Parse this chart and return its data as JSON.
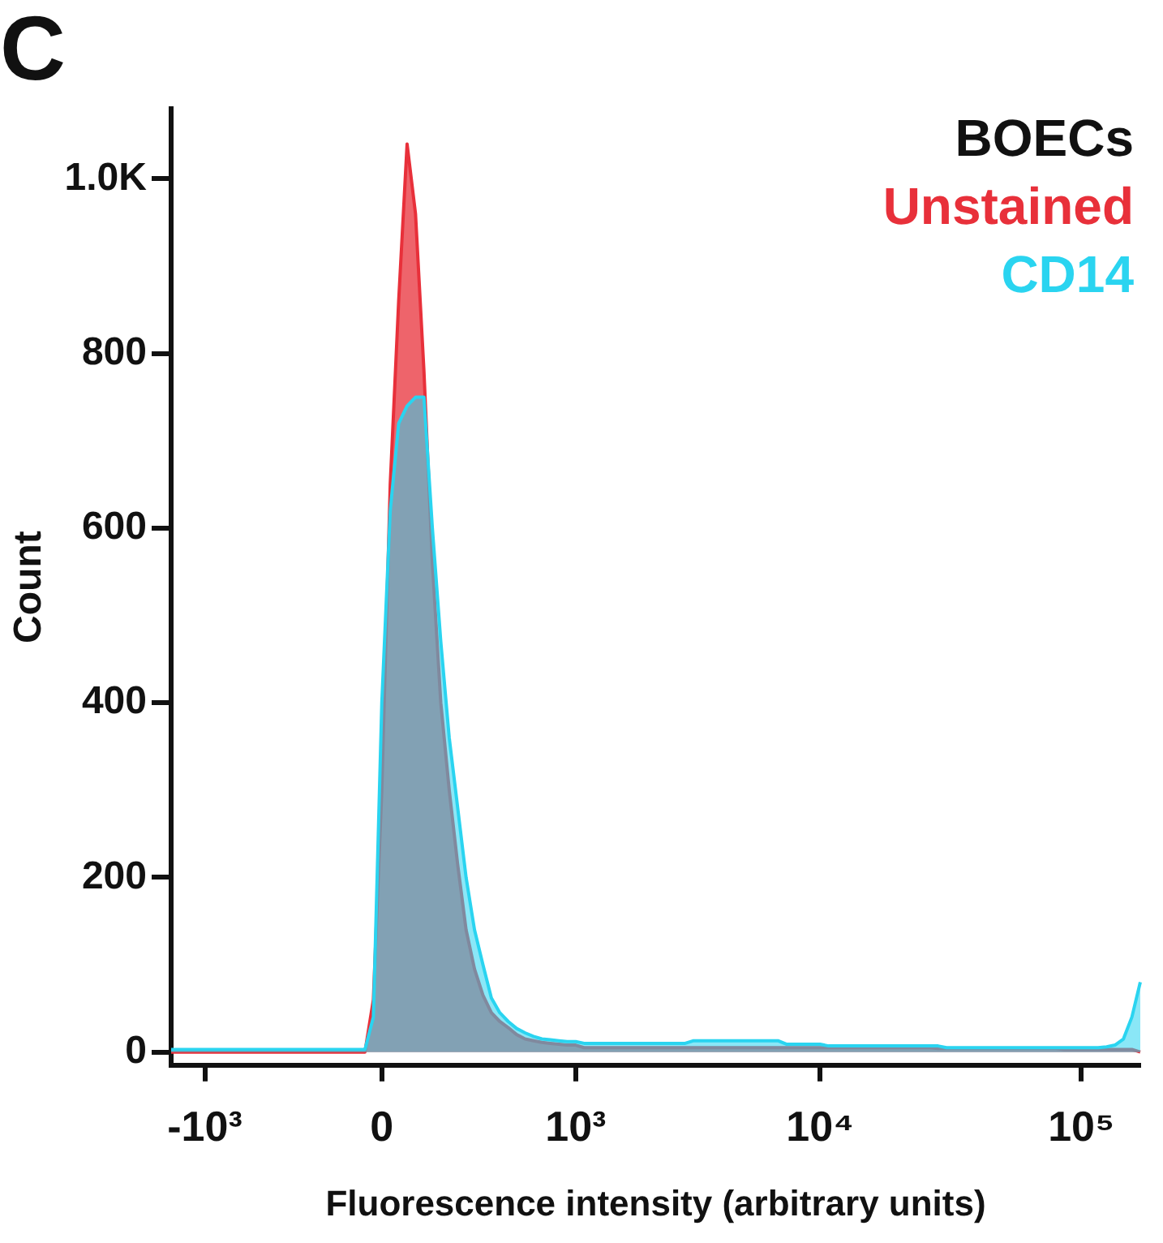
{
  "chart_data": {
    "type": "area",
    "title": "C",
    "xlabel": "Fluorescence intensity (arbitrary units)",
    "ylabel": "Count",
    "legend_title": "BOECs",
    "legend": "top right",
    "grid": false,
    "categories": [
      null,
      null,
      null,
      null,
      "-10³",
      null,
      null,
      null,
      null,
      null,
      null,
      null,
      null,
      null,
      null,
      null,
      null,
      null,
      null,
      null,
      null,
      null,
      null,
      null,
      null,
      "0",
      null,
      null,
      null,
      null,
      null,
      null,
      null,
      null,
      null,
      null,
      null,
      null,
      null,
      null,
      null,
      null,
      null,
      null,
      null,
      null,
      null,
      null,
      "10³",
      null,
      null,
      null,
      null,
      null,
      null,
      null,
      null,
      null,
      null,
      null,
      null,
      null,
      null,
      null,
      null,
      null,
      null,
      null,
      null,
      null,
      null,
      null,
      null,
      null,
      null,
      null,
      null,
      "10⁴",
      null,
      null,
      null,
      null,
      null,
      null,
      null,
      null,
      null,
      null,
      null,
      null,
      null,
      null,
      null,
      null,
      null,
      null,
      null,
      null,
      null,
      null,
      null,
      null,
      null,
      null,
      null,
      null,
      null,
      null,
      "10⁵",
      null,
      null,
      null,
      null,
      null,
      null,
      null
    ],
    "ylim": [
      -15,
      1080
    ],
    "yticks": [
      0,
      200,
      400,
      600,
      800,
      {
        "value": 1000,
        "label": "1.0K"
      }
    ],
    "series": [
      {
        "name": "Unstained",
        "color": "#e8303a",
        "values": [
          0,
          0,
          0,
          0,
          0,
          0,
          0,
          0,
          0,
          0,
          0,
          0,
          0,
          0,
          0,
          0,
          0,
          0,
          0,
          0,
          0,
          0,
          0,
          0,
          60,
          300,
          650,
          860,
          1040,
          960,
          780,
          560,
          400,
          300,
          215,
          140,
          95,
          65,
          45,
          35,
          28,
          20,
          15,
          13,
          11,
          10,
          9,
          8,
          8,
          5,
          5,
          5,
          5,
          5,
          5,
          5,
          5,
          5,
          5,
          5,
          5,
          5,
          5,
          5,
          5,
          5,
          5,
          5,
          5,
          5,
          5,
          5,
          5,
          5,
          5,
          5,
          5,
          5,
          5,
          5,
          5,
          5,
          5,
          5,
          5,
          5,
          5,
          5,
          5,
          5,
          5,
          4,
          4,
          4,
          4,
          4,
          4,
          4,
          4,
          4,
          4,
          4,
          4,
          4,
          4,
          4,
          3,
          3,
          3,
          3,
          3,
          3,
          3,
          3,
          3,
          0
        ]
      },
      {
        "name": "CD14",
        "color": "#2ad4f0",
        "values": [
          3,
          3,
          3,
          3,
          3,
          3,
          3,
          3,
          3,
          3,
          3,
          3,
          3,
          3,
          3,
          3,
          3,
          3,
          3,
          3,
          3,
          3,
          3,
          3,
          40,
          400,
          620,
          720,
          740,
          750,
          750,
          600,
          470,
          360,
          280,
          200,
          140,
          100,
          62,
          45,
          35,
          27,
          22,
          18,
          15,
          14,
          13,
          12,
          12,
          10,
          10,
          10,
          10,
          10,
          10,
          10,
          10,
          10,
          10,
          10,
          10,
          10,
          13,
          13,
          13,
          13,
          13,
          13,
          13,
          13,
          13,
          13,
          13,
          9,
          9,
          9,
          9,
          9,
          7,
          7,
          7,
          7,
          7,
          7,
          7,
          7,
          7,
          7,
          7,
          7,
          7,
          7,
          5,
          5,
          5,
          5,
          5,
          5,
          5,
          5,
          5,
          5,
          5,
          5,
          5,
          5,
          5,
          5,
          5,
          5,
          5,
          6,
          8,
          15,
          40,
          80
        ]
      }
    ]
  }
}
